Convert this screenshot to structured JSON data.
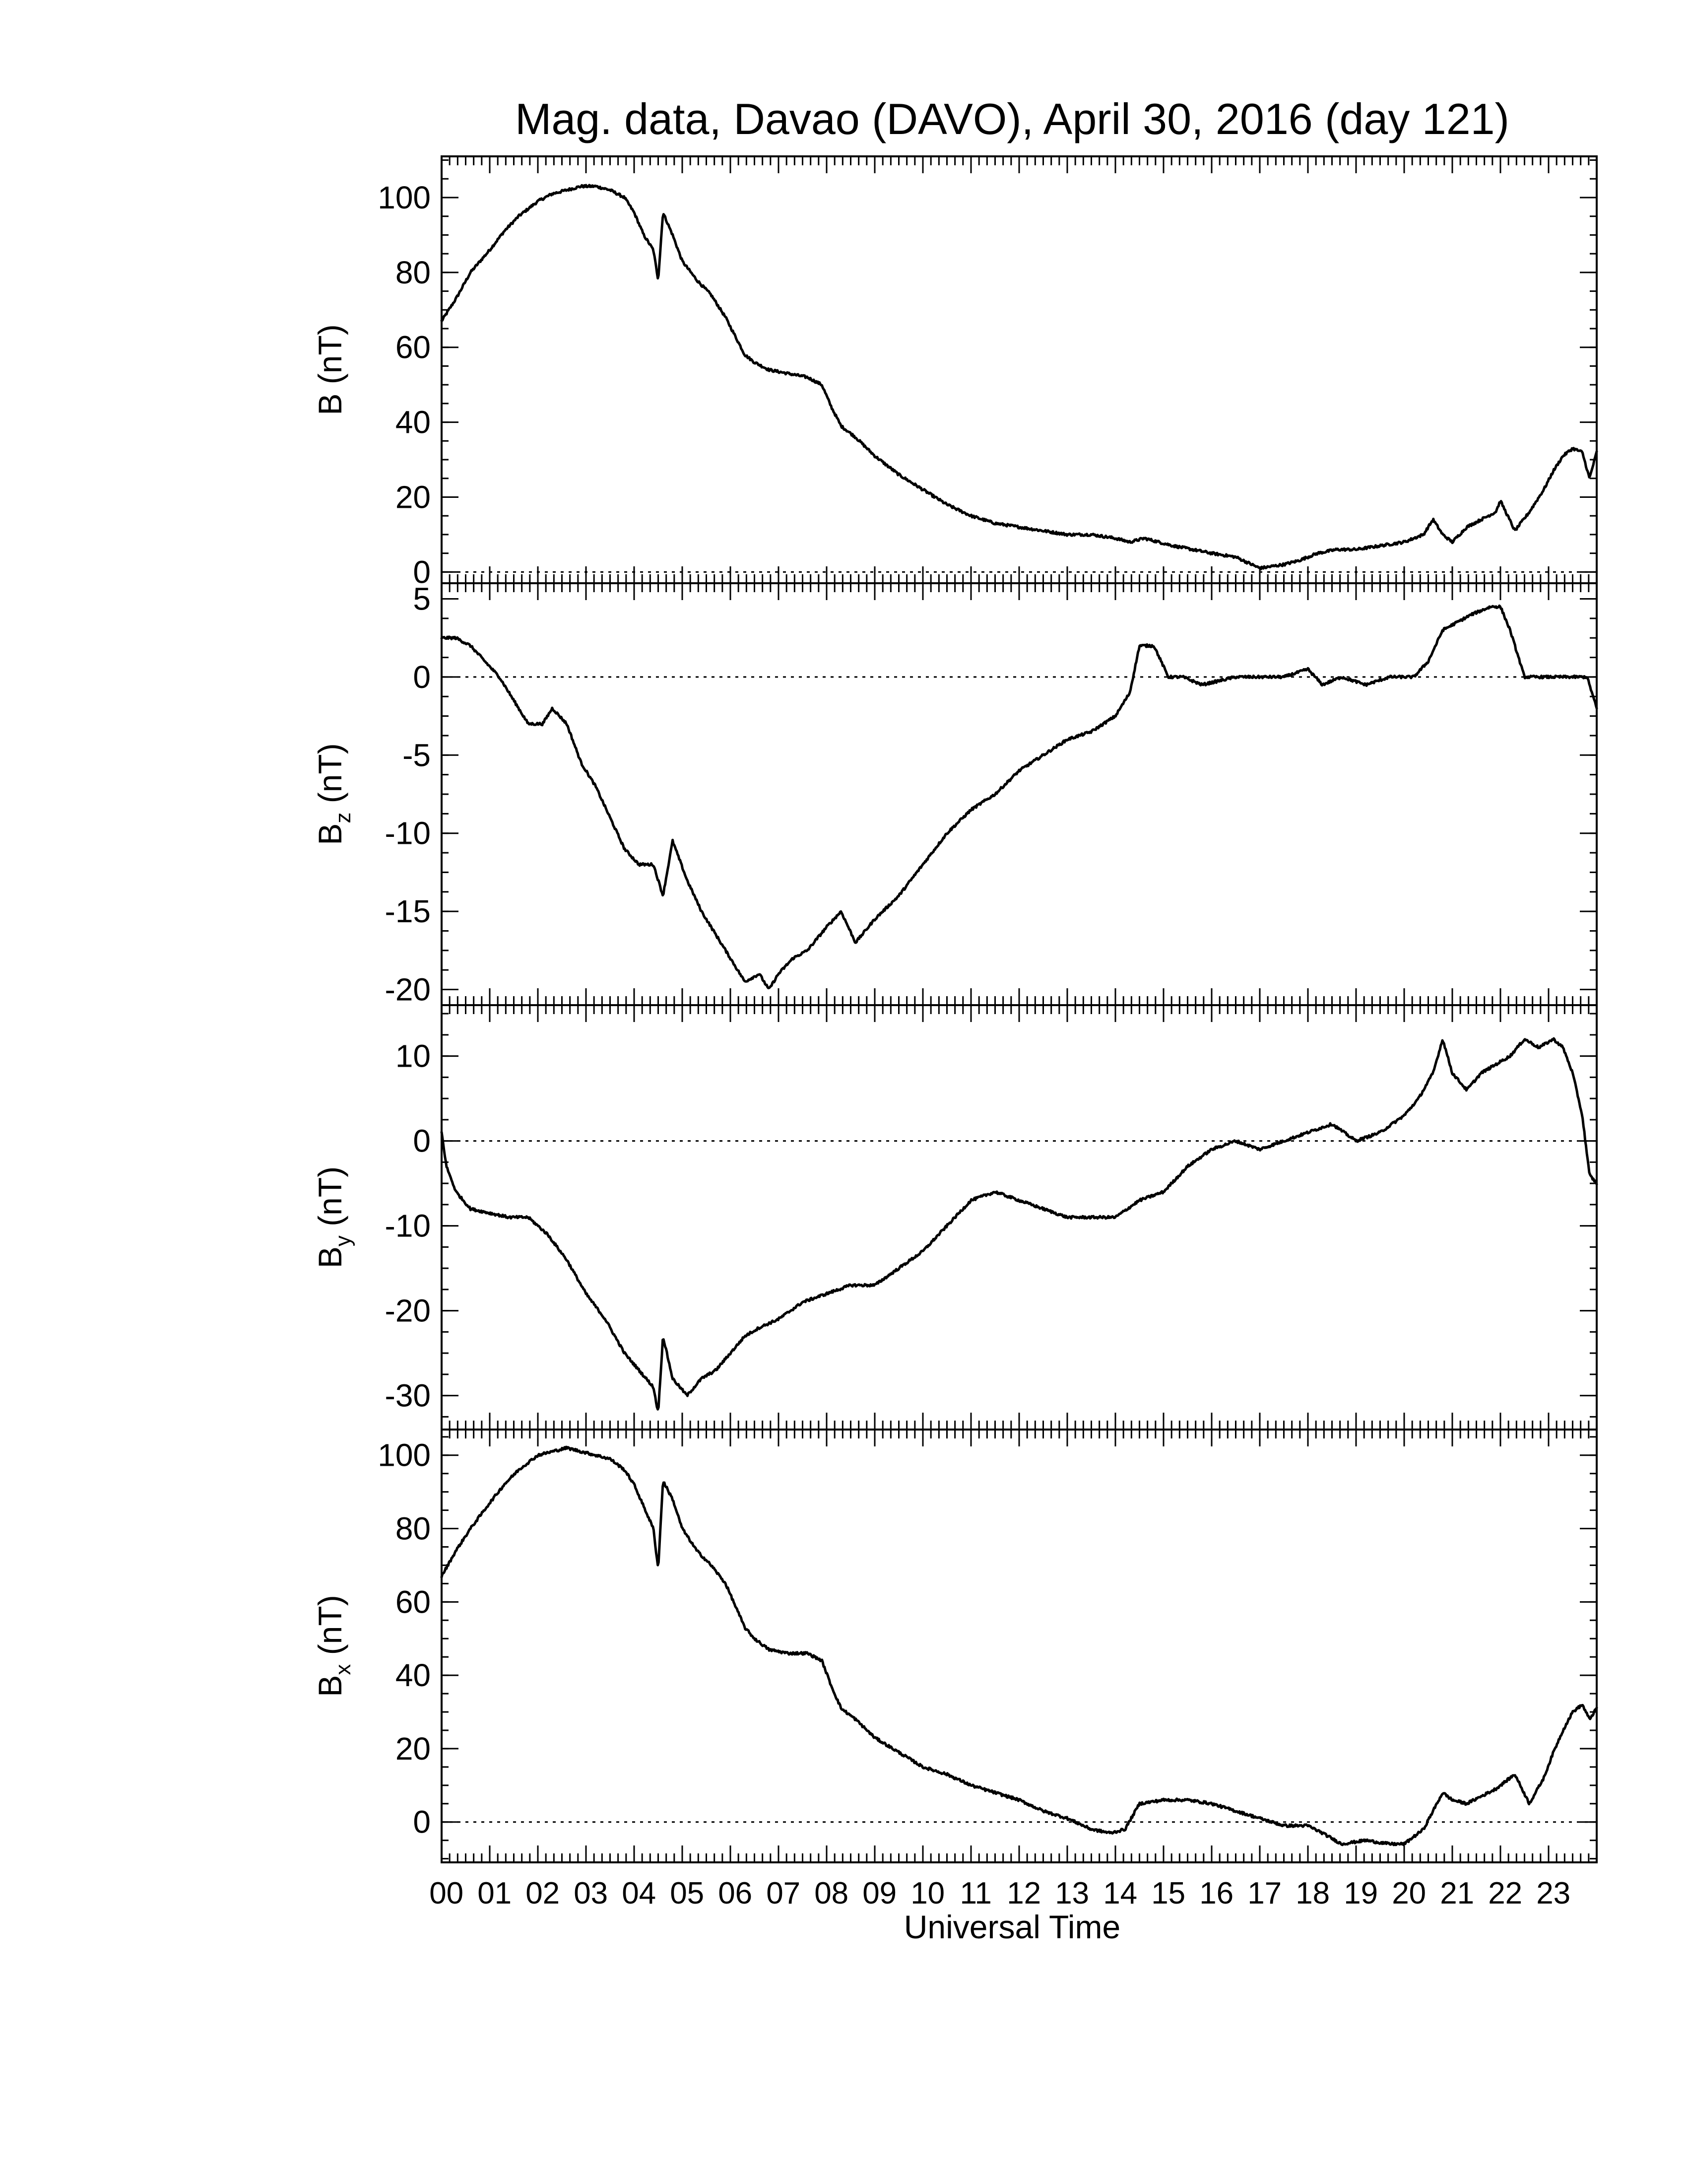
{
  "chart_data": [
    {
      "type": "line",
      "title": "Mag. data, Davao (DAVO), April 30, 2016 (day 121)",
      "ylabel": "B (nT)",
      "ylabel_base": "B",
      "ylabel_sub": "",
      "ylabel_unit": " (nT)",
      "ylim": [
        -3,
        111
      ],
      "yticks": [
        0,
        20,
        40,
        60,
        80,
        100
      ],
      "zero_line": true,
      "x": [
        0,
        0.3,
        0.6,
        1.0,
        1.3,
        1.6,
        2.0,
        2.3,
        2.6,
        2.9,
        3.2,
        3.5,
        3.8,
        4.0,
        4.2,
        4.4,
        4.5,
        4.6,
        4.8,
        5.0,
        5.3,
        5.6,
        5.9,
        6.1,
        6.3,
        6.5,
        6.8,
        7.2,
        7.6,
        7.9,
        8.1,
        8.3,
        8.6,
        9.0,
        9.5,
        10.0,
        10.5,
        11.0,
        11.5,
        12.0,
        12.5,
        13.0,
        13.5,
        14.0,
        14.3,
        14.6,
        14.9,
        15.2,
        15.6,
        16.0,
        16.5,
        17.0,
        17.5,
        17.8,
        18.2,
        18.6,
        19.0,
        19.5,
        20.0,
        20.4,
        20.6,
        20.8,
        21.0,
        21.3,
        21.6,
        21.9,
        22.0,
        22.3,
        22.6,
        22.9,
        23.1,
        23.3,
        23.5,
        23.7,
        23.85,
        24.0
      ],
      "y": [
        67,
        73,
        80,
        86,
        91,
        95,
        99,
        101,
        102,
        103,
        103,
        102,
        100,
        96,
        90,
        86,
        78,
        96,
        90,
        83,
        78,
        74,
        68,
        63,
        58,
        56,
        54,
        53,
        52,
        50,
        44,
        39,
        36,
        31,
        26,
        22,
        18,
        15,
        13,
        12,
        11,
        10,
        10,
        9,
        8,
        9,
        8,
        7,
        6,
        5,
        4,
        1,
        2,
        3,
        5,
        6,
        6,
        7,
        8,
        10,
        14,
        10,
        8,
        12,
        14,
        16,
        19,
        11,
        16,
        22,
        27,
        31,
        33,
        32,
        25,
        32
      ]
    },
    {
      "type": "line",
      "ylabel": "Bz (nT)",
      "ylabel_base": "B",
      "ylabel_sub": "z",
      "ylabel_unit": " (nT)",
      "ylim": [
        -21,
        6
      ],
      "yticks": [
        -20,
        -15,
        -10,
        -5,
        0,
        5
      ],
      "zero_line": true,
      "x": [
        0,
        0.3,
        0.6,
        0.9,
        1.2,
        1.5,
        1.8,
        2.1,
        2.3,
        2.6,
        2.9,
        3.2,
        3.5,
        3.8,
        4.1,
        4.4,
        4.6,
        4.8,
        5.1,
        5.4,
        5.7,
        6.0,
        6.3,
        6.6,
        6.8,
        7.0,
        7.3,
        7.6,
        8.0,
        8.3,
        8.6,
        9.0,
        9.5,
        10.0,
        10.5,
        11.0,
        11.5,
        12.0,
        12.5,
        13.0,
        13.5,
        14.0,
        14.3,
        14.5,
        14.8,
        15.1,
        15.4,
        15.8,
        16.5,
        17.0,
        17.5,
        18.0,
        18.3,
        18.7,
        19.2,
        19.7,
        20.2,
        20.5,
        20.8,
        21.1,
        21.4,
        21.8,
        22.0,
        22.2,
        22.5,
        22.8,
        23.2,
        23.5,
        23.8,
        24.0
      ],
      "y": [
        2.5,
        2.5,
        2,
        1,
        0,
        -1.5,
        -3,
        -3,
        -2,
        -3,
        -5.5,
        -7,
        -9,
        -11,
        -12,
        -12,
        -14,
        -10.5,
        -13,
        -15,
        -16.5,
        -18,
        -19.5,
        -19,
        -20,
        -19,
        -18,
        -17.5,
        -16,
        -15,
        -17,
        -15.5,
        -14,
        -12,
        -10,
        -8.5,
        -7.5,
        -6,
        -5,
        -4,
        -3.5,
        -2.5,
        -1,
        2,
        2,
        0,
        0,
        -0.5,
        0,
        0,
        0,
        0.5,
        -0.5,
        0,
        -0.5,
        0,
        0,
        1,
        3,
        3.5,
        4,
        4.5,
        4.5,
        3,
        0,
        0,
        0,
        0,
        0,
        -2
      ]
    },
    {
      "type": "line",
      "ylabel": "By (nT)",
      "ylabel_base": "B",
      "ylabel_sub": "y",
      "ylabel_unit": " (nT)",
      "ylim": [
        -34,
        16
      ],
      "yticks": [
        -30,
        -20,
        -10,
        0,
        10
      ],
      "zero_line": true,
      "x": [
        0,
        0.1,
        0.3,
        0.6,
        1.0,
        1.4,
        1.8,
        2.2,
        2.6,
        3.0,
        3.4,
        3.8,
        4.1,
        4.4,
        4.5,
        4.6,
        4.8,
        5.1,
        5.4,
        5.7,
        6.0,
        6.3,
        6.6,
        7.0,
        7.5,
        8.0,
        8.5,
        9.0,
        9.5,
        10.0,
        10.5,
        11.0,
        11.5,
        12.0,
        12.5,
        13.0,
        13.5,
        14.0,
        14.5,
        15.0,
        15.5,
        16.0,
        16.5,
        17.0,
        17.5,
        18.0,
        18.5,
        19.0,
        19.5,
        20.0,
        20.3,
        20.6,
        20.8,
        21.0,
        21.3,
        21.6,
        21.9,
        22.2,
        22.5,
        22.8,
        23.1,
        23.3,
        23.5,
        23.7,
        23.85,
        24.0
      ],
      "y": [
        1,
        -3,
        -6,
        -8,
        -8.5,
        -9,
        -9,
        -11,
        -14,
        -18,
        -21,
        -25,
        -27,
        -29,
        -32,
        -23,
        -28,
        -30,
        -28,
        -27,
        -25,
        -23,
        -22,
        -21,
        -19,
        -18,
        -17,
        -17,
        -15,
        -13,
        -10,
        -7,
        -6,
        -7,
        -8,
        -9,
        -9,
        -9,
        -7,
        -6,
        -3,
        -1,
        0,
        -1,
        0,
        1,
        2,
        0,
        1,
        3,
        5,
        8,
        12,
        8,
        6,
        8,
        9,
        10,
        12,
        11,
        12,
        11,
        8,
        3,
        -4,
        -5
      ]
    },
    {
      "type": "line",
      "ylabel": "Bx (nT)",
      "ylabel_base": "B",
      "ylabel_sub": "x",
      "ylabel_unit": " (nT)",
      "ylim": [
        -11,
        107
      ],
      "yticks": [
        0,
        20,
        40,
        60,
        80,
        100
      ],
      "zero_line": true,
      "x": [
        0,
        0.3,
        0.6,
        1.0,
        1.3,
        1.6,
        2.0,
        2.3,
        2.6,
        2.9,
        3.2,
        3.5,
        3.8,
        4.0,
        4.2,
        4.4,
        4.5,
        4.6,
        4.8,
        5.0,
        5.3,
        5.6,
        5.9,
        6.1,
        6.3,
        6.5,
        6.8,
        7.2,
        7.6,
        7.9,
        8.1,
        8.3,
        8.6,
        9.0,
        9.5,
        10.0,
        10.5,
        11.0,
        11.5,
        12.0,
        12.5,
        13.0,
        13.5,
        13.9,
        14.2,
        14.5,
        15.0,
        15.5,
        16.0,
        16.5,
        17.0,
        17.5,
        18.0,
        18.3,
        18.7,
        19.2,
        19.7,
        20.0,
        20.4,
        20.6,
        20.8,
        21.0,
        21.3,
        21.6,
        21.9,
        22.1,
        22.3,
        22.6,
        22.9,
        23.1,
        23.3,
        23.5,
        23.7,
        23.85,
        24.0
      ],
      "y": [
        67,
        74,
        80,
        87,
        92,
        96,
        100,
        101,
        102,
        101,
        100,
        99,
        96,
        92,
        86,
        80,
        69,
        93,
        88,
        80,
        74,
        70,
        65,
        59,
        53,
        50,
        47,
        46,
        46,
        44,
        37,
        31,
        28,
        23,
        19,
        15,
        13,
        10,
        8,
        6,
        3,
        1,
        -2,
        -3,
        -2,
        5,
        6,
        6,
        5,
        3,
        1,
        -1,
        -1,
        -3,
        -6,
        -5,
        -6,
        -6,
        -2,
        3,
        8,
        6,
        5,
        7,
        9,
        11,
        13,
        5,
        12,
        19,
        25,
        30,
        32,
        28,
        31
      ]
    }
  ],
  "x_axis": {
    "label": "Universal Time",
    "xlim": [
      0,
      24
    ],
    "tick_labels": [
      "00",
      "01",
      "02",
      "03",
      "04",
      "05",
      "06",
      "07",
      "08",
      "09",
      "10",
      "11",
      "12",
      "13",
      "14",
      "15",
      "16",
      "17",
      "18",
      "19",
      "20",
      "21",
      "22",
      "23"
    ]
  },
  "colors": {
    "line": "#000000",
    "background": "#ffffff"
  }
}
